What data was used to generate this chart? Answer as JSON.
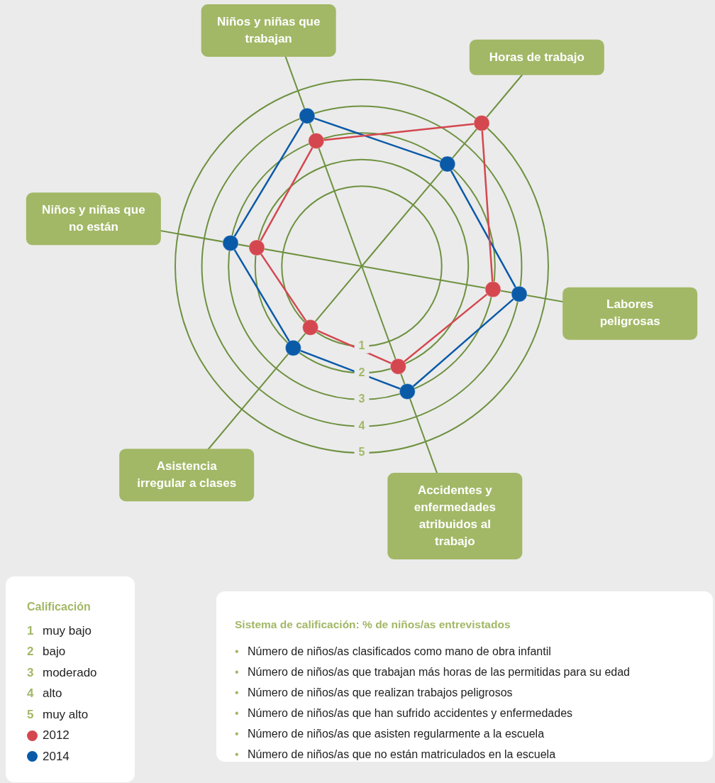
{
  "chart_data": {
    "type": "radar",
    "categories": [
      "Niños y niñas que trabajan",
      "Horas de trabajo",
      "Labores peligrosas",
      "Accidentes y enfermedades atribuidos al trabajo",
      "Asistencia irregular a clases",
      "Niños y niñas que no están"
    ],
    "series": [
      {
        "name": "2012",
        "color": "#d4474f",
        "values": [
          3,
          5,
          3,
          2,
          1,
          2
        ]
      },
      {
        "name": "2014",
        "color": "#0a5aa8",
        "values": [
          4,
          3,
          4,
          3,
          2,
          3
        ]
      }
    ],
    "ylim": [
      -2,
      5
    ],
    "yticks": [
      1,
      2,
      3,
      4,
      5
    ],
    "grid": true,
    "marker": "circle",
    "legend": "bottom left",
    "legend_title": "Calificación",
    "annotations": [
      "1 muy bajo",
      "2 bajo",
      "3 moderado",
      "4 alto",
      "5 muy alto",
      "Sistema de calificación: % de niños/as entrevistados",
      "• Número de niños/as clasificados como mano de obra infantil",
      "• Número de niños/as que trabajan más horas de las permitidas para su edad",
      "• Número de niños/as que realizan trabajos peligrosos",
      "• Número de niños/as que han sufrido accidentes y enfermedades",
      "• Número de niños/as que asisten regularmente a la escuela",
      "• Número de niños/as que no están matriculados en la escuela"
    ]
  }
}
